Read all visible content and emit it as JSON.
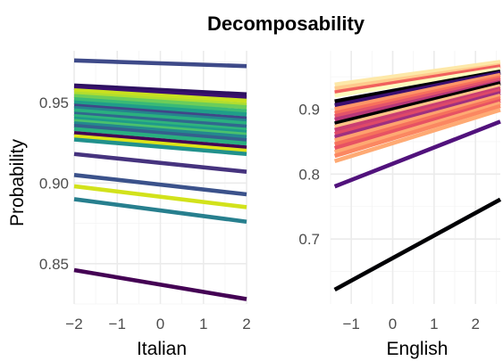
{
  "chart_data": {
    "type": "line",
    "title": "Decomposability",
    "ylabel": "Probability",
    "grid": true,
    "legend": "none",
    "panels": [
      {
        "xlabel": "Italian",
        "xlim": [
          -2,
          2
        ],
        "ylim": [
          0.825,
          0.982
        ],
        "xticks": [
          -2,
          -1,
          0,
          1,
          2
        ],
        "xtick_labels": [
          "−2",
          "−1",
          "0",
          "1",
          "2"
        ],
        "yticks": [
          0.85,
          0.9,
          0.95
        ],
        "ytick_labels": [
          "0.85",
          "0.90",
          "0.95"
        ],
        "series": [
          {
            "color": "#3e4a89",
            "x": [
              -2,
              2
            ],
            "y": [
              0.976,
              0.9725
            ]
          },
          {
            "color": "#2d1160",
            "x": [
              -2,
              2
            ],
            "y": [
              0.9605,
              0.955
            ]
          },
          {
            "color": "#3b0f70",
            "x": [
              -2,
              2
            ],
            "y": [
              0.959,
              0.953
            ]
          },
          {
            "color": "#c8e020",
            "x": [
              -2,
              2
            ],
            "y": [
              0.9575,
              0.951
            ]
          },
          {
            "color": "#b0dd2f",
            "x": [
              -2,
              2
            ],
            "y": [
              0.9555,
              0.9485
            ]
          },
          {
            "color": "#6ccd5a",
            "x": [
              -2,
              2
            ],
            "y": [
              0.954,
              0.947
            ]
          },
          {
            "color": "#3aba76",
            "x": [
              -2,
              2
            ],
            "y": [
              0.952,
              0.9445
            ]
          },
          {
            "color": "#1f9e89",
            "x": [
              -2,
              2
            ],
            "y": [
              0.95,
              0.9425
            ]
          },
          {
            "color": "#404688",
            "x": [
              -2,
              2
            ],
            "y": [
              0.948,
              0.94
            ]
          },
          {
            "color": "#26828e",
            "x": [
              -2,
              2
            ],
            "y": [
              0.9465,
              0.9385
            ]
          },
          {
            "color": "#2ab07f",
            "x": [
              -2,
              2
            ],
            "y": [
              0.945,
              0.937
            ]
          },
          {
            "color": "#31688e",
            "x": [
              -2,
              2
            ],
            "y": [
              0.943,
              0.935
            ]
          },
          {
            "color": "#2fb47c",
            "x": [
              -2,
              2
            ],
            "y": [
              0.9415,
              0.933
            ]
          },
          {
            "color": "#1f9a8a",
            "x": [
              -2,
              2
            ],
            "y": [
              0.94,
              0.9315
            ]
          },
          {
            "color": "#4ac16d",
            "x": [
              -2,
              2
            ],
            "y": [
              0.9385,
              0.93
            ]
          },
          {
            "color": "#23898e",
            "x": [
              -2,
              2
            ],
            "y": [
              0.937,
              0.9285
            ]
          },
          {
            "color": "#355f8d",
            "x": [
              -2,
              2
            ],
            "y": [
              0.9355,
              0.9265
            ]
          },
          {
            "color": "#29af7f",
            "x": [
              -2,
              2
            ],
            "y": [
              0.9335,
              0.9245
            ]
          },
          {
            "color": "#440154",
            "x": [
              -2,
              2
            ],
            "y": [
              0.931,
              0.922
            ]
          },
          {
            "color": "#dde318",
            "x": [
              -2,
              2
            ],
            "y": [
              0.929,
              0.92
            ]
          },
          {
            "color": "#21918c",
            "x": [
              -2,
              2
            ],
            "y": [
              0.927,
              0.918
            ]
          },
          {
            "color": "#46337e",
            "x": [
              -2,
              2
            ],
            "y": [
              0.918,
              0.907
            ]
          },
          {
            "color": "#3b528b",
            "x": [
              -2,
              2
            ],
            "y": [
              0.905,
              0.893
            ]
          },
          {
            "color": "#d2e21b",
            "x": [
              -2,
              2
            ],
            "y": [
              0.898,
              0.885
            ]
          },
          {
            "color": "#277f8e",
            "x": [
              -2,
              2
            ],
            "y": [
              0.89,
              0.876
            ]
          },
          {
            "color": "#440154",
            "x": [
              -2,
              2
            ],
            "y": [
              0.846,
              0.828
            ]
          }
        ]
      },
      {
        "xlabel": "English",
        "xlim": [
          -1.5,
          2.6
        ],
        "ylim": [
          0.6,
          0.99
        ],
        "xticks": [
          -1,
          0,
          1,
          2
        ],
        "xtick_labels": [
          "−1",
          "0",
          "1",
          "2"
        ],
        "yticks": [
          0.7,
          0.8,
          0.9
        ],
        "ytick_labels": [
          "0.7",
          "0.8",
          "0.9"
        ],
        "series": [
          {
            "color": "#fde8a8",
            "x": [
              -1.4,
              2.6
            ],
            "y": [
              0.938,
              0.973
            ]
          },
          {
            "color": "#feca8d",
            "x": [
              -1.4,
              2.6
            ],
            "y": [
              0.932,
              0.968
            ]
          },
          {
            "color": "#f1605d",
            "x": [
              -1.4,
              2.6
            ],
            "y": [
              0.926,
              0.966
            ]
          },
          {
            "color": "#fcfdbf",
            "x": [
              -1.4,
              2.6
            ],
            "y": [
              0.921,
              0.962
            ]
          },
          {
            "color": "#000004",
            "x": [
              -1.4,
              2.6
            ],
            "y": [
              0.912,
              0.958
            ]
          },
          {
            "color": "#3b0f70",
            "x": [
              -1.4,
              2.6
            ],
            "y": [
              0.906,
              0.956
            ]
          },
          {
            "color": "#fd9668",
            "x": [
              -1.4,
              2.6
            ],
            "y": [
              0.9,
              0.953
            ]
          },
          {
            "color": "#f7705c",
            "x": [
              -1.4,
              2.6
            ],
            "y": [
              0.894,
              0.949
            ]
          },
          {
            "color": "#e3536a",
            "x": [
              -1.4,
              2.6
            ],
            "y": [
              0.889,
              0.946
            ]
          },
          {
            "color": "#b73779",
            "x": [
              -1.4,
              2.6
            ],
            "y": [
              0.884,
              0.942
            ]
          },
          {
            "color": "#000004",
            "x": [
              -1.4,
              2.6
            ],
            "y": [
              0.878,
              0.94
            ]
          },
          {
            "color": "#fec287",
            "x": [
              -1.4,
              2.6
            ],
            "y": [
              0.873,
              0.936
            ]
          },
          {
            "color": "#ca3e72",
            "x": [
              -1.4,
              2.6
            ],
            "y": [
              0.868,
              0.932
            ]
          },
          {
            "color": "#de4968",
            "x": [
              -1.4,
              2.6
            ],
            "y": [
              0.862,
              0.929
            ]
          },
          {
            "color": "#9f2f7f",
            "x": [
              -1.4,
              2.6
            ],
            "y": [
              0.857,
              0.925
            ]
          },
          {
            "color": "#fea16e",
            "x": [
              -1.4,
              2.6
            ],
            "y": [
              0.852,
              0.921
            ]
          },
          {
            "color": "#f5715c",
            "x": [
              -1.4,
              2.6
            ],
            "y": [
              0.846,
              0.917
            ]
          },
          {
            "color": "#e75263",
            "x": [
              -1.4,
              2.6
            ],
            "y": [
              0.84,
              0.913
            ]
          },
          {
            "color": "#fea973",
            "x": [
              -1.4,
              2.6
            ],
            "y": [
              0.834,
              0.909
            ]
          },
          {
            "color": "#fb8761",
            "x": [
              -1.4,
              2.6
            ],
            "y": [
              0.828,
              0.905
            ]
          },
          {
            "color": "#feaa74",
            "x": [
              -1.4,
              2.6
            ],
            "y": [
              0.82,
              0.899
            ]
          },
          {
            "color": "#51127c",
            "x": [
              -1.4,
              2.6
            ],
            "y": [
              0.781,
              0.881
            ]
          },
          {
            "color": "#000004",
            "x": [
              -1.4,
              2.6
            ],
            "y": [
              0.622,
              0.761
            ]
          }
        ]
      }
    ]
  }
}
